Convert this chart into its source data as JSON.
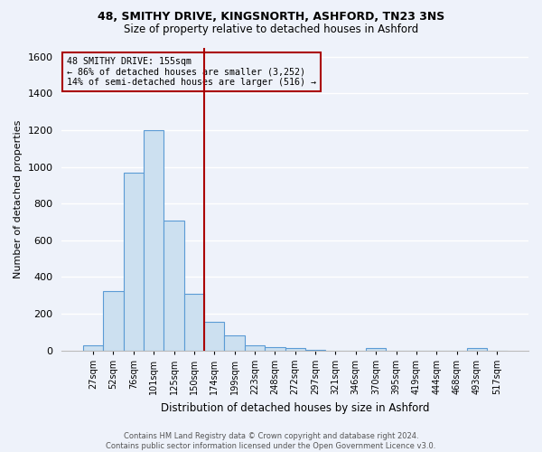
{
  "title1": "48, SMITHY DRIVE, KINGSNORTH, ASHFORD, TN23 3NS",
  "title2": "Size of property relative to detached houses in Ashford",
  "xlabel": "Distribution of detached houses by size in Ashford",
  "ylabel": "Number of detached properties",
  "bin_labels": [
    "27sqm",
    "52sqm",
    "76sqm",
    "101sqm",
    "125sqm",
    "150sqm",
    "174sqm",
    "199sqm",
    "223sqm",
    "248sqm",
    "272sqm",
    "297sqm",
    "321sqm",
    "346sqm",
    "370sqm",
    "395sqm",
    "419sqm",
    "444sqm",
    "468sqm",
    "493sqm",
    "517sqm"
  ],
  "bar_heights": [
    30,
    325,
    970,
    1200,
    705,
    310,
    155,
    80,
    30,
    18,
    15,
    5,
    0,
    0,
    12,
    0,
    0,
    0,
    0,
    15,
    0
  ],
  "bar_color": "#cce0f0",
  "bar_edge_color": "#5b9bd5",
  "vline_color": "#aa0000",
  "annotation_line1": "48 SMITHY DRIVE: 155sqm",
  "annotation_line2": "← 86% of detached houses are smaller (3,252)",
  "annotation_line3": "14% of semi-detached houses are larger (516) →",
  "ylim": [
    0,
    1650
  ],
  "yticks": [
    0,
    200,
    400,
    600,
    800,
    1000,
    1200,
    1400,
    1600
  ],
  "footer1": "Contains HM Land Registry data © Crown copyright and database right 2024.",
  "footer2": "Contains public sector information licensed under the Open Government Licence v3.0.",
  "bg_color": "#eef2fa",
  "grid_color": "#ffffff"
}
